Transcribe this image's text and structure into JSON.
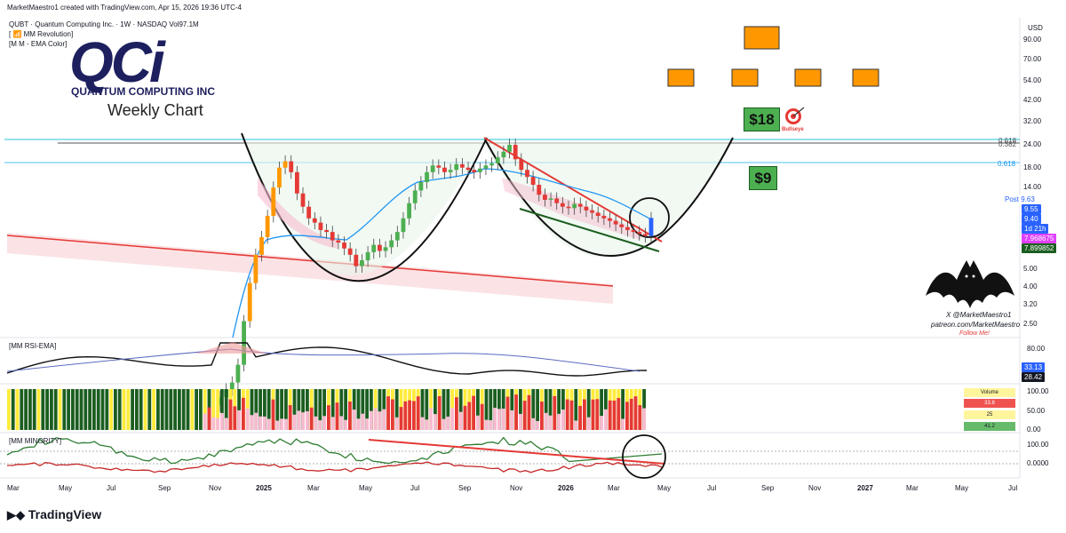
{
  "header": {
    "created": "MarketMaestro1 created with TradingView.com, Apr 15, 2026 19:36 UTC-4",
    "symbol_line": "QUBT · Quantum Computing Inc. · 1W · NASDAQ  Vol97.1M",
    "indicator1": "[ 📶 MM Revolution]",
    "indicator2": "[M M - EMA Color]"
  },
  "logo": {
    "letters": "QCi",
    "company": "QUANTUM COMPUTING INC",
    "colors": {
      "navy": "#1d1f5e"
    }
  },
  "chart_title": "Weekly Chart",
  "targets": {
    "t18": "$18",
    "t9": "$9",
    "bullseye": "Bullseye"
  },
  "watermark": {
    "line1": "X @MarketMaestro1",
    "line2": "patreon.com/MarketMaestro",
    "line3": "Follow Me!"
  },
  "currency": "USD",
  "fib": {
    "f618": "0.618",
    "f382": "0.382",
    "f618b": "0.618"
  },
  "chart_data": {
    "type": "candlestick",
    "y_scale": "log",
    "y_ticks": [
      "90.00",
      "70.00",
      "54.00",
      "42.00",
      "32.00",
      "24.00",
      "18.00",
      "14.00",
      "9.63",
      "5.00",
      "4.00",
      "3.20",
      "2.50"
    ],
    "x_ticks": [
      {
        "label": "Mar",
        "bold": false
      },
      {
        "label": "May",
        "bold": false
      },
      {
        "label": "Jul",
        "bold": false
      },
      {
        "label": "Sep",
        "bold": false
      },
      {
        "label": "Nov",
        "bold": false
      },
      {
        "label": "2025",
        "bold": true
      },
      {
        "label": "Mar",
        "bold": false
      },
      {
        "label": "May",
        "bold": false
      },
      {
        "label": "Jul",
        "bold": false
      },
      {
        "label": "Sep",
        "bold": false
      },
      {
        "label": "Nov",
        "bold": false
      },
      {
        "label": "2026",
        "bold": true
      },
      {
        "label": "Mar",
        "bold": false
      },
      {
        "label": "May",
        "bold": false
      },
      {
        "label": "Jul",
        "bold": false
      },
      {
        "label": "Sep",
        "bold": false
      },
      {
        "label": "Nov",
        "bold": false
      },
      {
        "label": "2027",
        "bold": true
      },
      {
        "label": "Mar",
        "bold": false
      },
      {
        "label": "May",
        "bold": false
      },
      {
        "label": "Jul",
        "bold": false
      }
    ],
    "price_badges": [
      {
        "label": "Post",
        "value": "9.63",
        "color": "#2962ff"
      },
      {
        "label": "",
        "value": "9.55",
        "color": "#2962ff"
      },
      {
        "label": "",
        "value": "9.40",
        "color": "#2962ff"
      },
      {
        "label": "",
        "value": "1d 21h",
        "color": "#2962ff"
      },
      {
        "label": "",
        "value": "7.968675",
        "color": "#e040fb"
      },
      {
        "label": "",
        "value": "7.899852",
        "color": "#1b5e20"
      }
    ],
    "closes": [
      1.0,
      1.1,
      1.2,
      1.5,
      2.6,
      4.2,
      6.0,
      7.5,
      9.8,
      14.0,
      18.0,
      19.5,
      17.0,
      13.0,
      11.0,
      9.5,
      9.0,
      8.2,
      8.0,
      7.2,
      7.0,
      6.5,
      6.0,
      5.2,
      5.6,
      6.2,
      6.8,
      6.3,
      6.6,
      7.2,
      8.0,
      9.5,
      11.5,
      13.5,
      15.0,
      17.0,
      18.5,
      18.0,
      17.0,
      17.5,
      18.8,
      18.0,
      17.5,
      17.0,
      17.8,
      18.5,
      19.0,
      20.5,
      22.0,
      24.0,
      20.0,
      17.5,
      16.0,
      14.5,
      12.8,
      12.0,
      12.2,
      11.5,
      11.0,
      10.8,
      11.4,
      11.0,
      10.5,
      10.2,
      9.8,
      9.5,
      9.2,
      8.8,
      8.5,
      8.2,
      8.0,
      7.8,
      7.6,
      9.55
    ],
    "rsi_ticks": [
      "80.00"
    ],
    "rsi_badges": [
      "33.13",
      "28.42"
    ],
    "volume_ticks": [
      "100.00",
      "50.00",
      "0.00"
    ],
    "volume_table": {
      "title": "Volume",
      "rows": [
        "33.8",
        "25",
        "41.2"
      ]
    },
    "minority_ticks": [
      "100.00",
      "0.0000"
    ]
  },
  "footer": {
    "brand": "TradingView"
  },
  "colors": {
    "up": "#26a69a",
    "down": "#ef5350",
    "orange": "#ff9800",
    "target": "#4caf50"
  }
}
